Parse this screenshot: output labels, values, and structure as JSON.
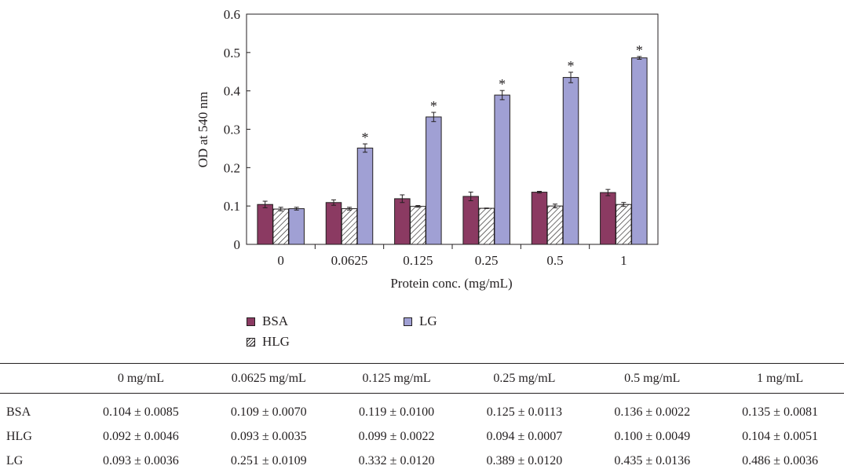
{
  "colors": {
    "BSA": "#8b3a62",
    "HLG": "hatch",
    "LG": "#a0a0d4",
    "ink": "#231f20"
  },
  "chart_data": {
    "type": "bar",
    "title": "",
    "xlabel": "Protein conc. (mg/mL)",
    "ylabel": "OD at 540 nm",
    "ylim": [
      0,
      0.6
    ],
    "yticks": [
      "0",
      "0.1",
      "0.2",
      "0.3",
      "0.4",
      "0.5",
      "0.6"
    ],
    "ytick_values": [
      0,
      0.1,
      0.2,
      0.3,
      0.4,
      0.5,
      0.6
    ],
    "categories": [
      "0",
      "0.0625",
      "0.125",
      "0.25",
      "0.5",
      "1"
    ],
    "grid": false,
    "legend_position": "bottom",
    "significance_marker": "*",
    "significant_series": "LG",
    "significant_categories": [
      "0.0625",
      "0.125",
      "0.25",
      "0.5",
      "1"
    ],
    "series": [
      {
        "name": "BSA",
        "fill": "solid",
        "values": [
          0.104,
          0.109,
          0.119,
          0.125,
          0.136,
          0.135
        ],
        "errors": [
          0.0085,
          0.007,
          0.01,
          0.0113,
          0.0022,
          0.0081
        ]
      },
      {
        "name": "HLG",
        "fill": "hatch",
        "values": [
          0.092,
          0.093,
          0.099,
          0.094,
          0.1,
          0.104
        ],
        "errors": [
          0.0046,
          0.0035,
          0.0022,
          0.0007,
          0.0049,
          0.0051
        ]
      },
      {
        "name": "LG",
        "fill": "solid",
        "values": [
          0.093,
          0.251,
          0.332,
          0.389,
          0.435,
          0.486
        ],
        "errors": [
          0.0036,
          0.0109,
          0.012,
          0.012,
          0.0136,
          0.0036
        ]
      }
    ]
  },
  "legend": {
    "bsa": "BSA",
    "lg": "LG",
    "hlg": "HLG"
  },
  "table": {
    "headers": [
      "0 mg/mL",
      "0.0625 mg/mL",
      "0.125 mg/mL",
      "0.25 mg/mL",
      "0.5 mg/mL",
      "1 mg/mL"
    ],
    "rows": [
      {
        "label": "BSA",
        "cells": [
          "0.104 ± 0.0085",
          "0.109 ± 0.0070",
          "0.119 ± 0.0100",
          "0.125 ± 0.0113",
          "0.136 ± 0.0022",
          "0.135 ± 0.0081"
        ]
      },
      {
        "label": "HLG",
        "cells": [
          "0.092 ± 0.0046",
          "0.093 ± 0.0035",
          "0.099 ± 0.0022",
          "0.094 ± 0.0007",
          "0.100 ± 0.0049",
          "0.104 ± 0.0051"
        ]
      },
      {
        "label": "LG",
        "cells": [
          "0.093 ± 0.0036",
          "0.251 ± 0.0109",
          "0.332 ± 0.0120",
          "0.389 ± 0.0120",
          "0.435 ± 0.0136",
          "0.486 ± 0.0036"
        ]
      }
    ]
  }
}
